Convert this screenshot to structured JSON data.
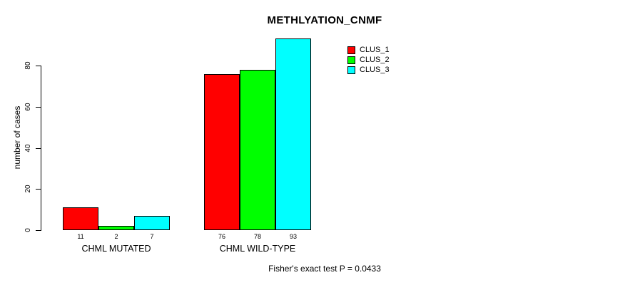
{
  "chart_data": {
    "type": "bar",
    "title": "METHLYATION_CNMF",
    "ylabel": "number of cases",
    "xlabel": "",
    "categories": [
      "CHML MUTATED",
      "CHML WILD-TYPE"
    ],
    "series": [
      {
        "name": "CLUS_1",
        "color": "#ff0000",
        "values": [
          11,
          76
        ]
      },
      {
        "name": "CLUS_2",
        "color": "#00ff00",
        "values": [
          2,
          78
        ]
      },
      {
        "name": "CLUS_3",
        "color": "#00ffff",
        "values": [
          7,
          93
        ]
      }
    ],
    "yticks": [
      0,
      20,
      40,
      60,
      80
    ],
    "ylim": [
      0,
      93
    ],
    "grid": false,
    "legend_position": "top-right",
    "value_labels_shown": true,
    "annotation": "Fisher's exact test P = 0.0433"
  }
}
